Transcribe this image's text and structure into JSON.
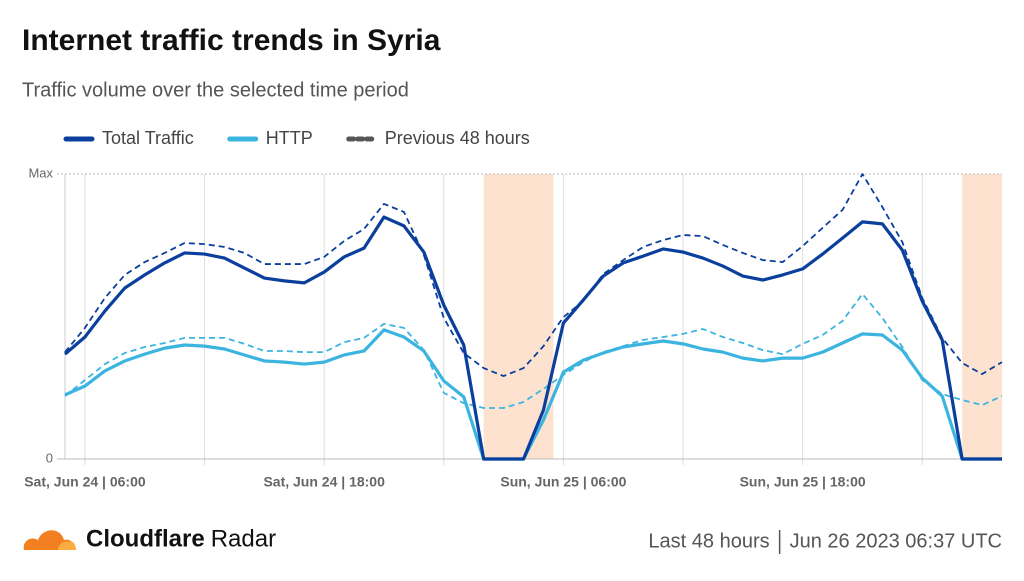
{
  "chart_data": {
    "type": "line",
    "title": "Internet traffic trends in Syria",
    "subtitle": "Traffic volume over the selected time period",
    "categories": [
      null,
      "Sat, Jun 24 | 06:00",
      null,
      null,
      null,
      null,
      null,
      null,
      null,
      null,
      null,
      null,
      null,
      "Sat, Jun 24 | 18:00",
      null,
      null,
      null,
      null,
      null,
      null,
      null,
      null,
      null,
      null,
      null,
      "Sun, Jun 25 | 06:00",
      null,
      null,
      null,
      null,
      null,
      null,
      null,
      null,
      null,
      null,
      null,
      "Sun, Jun 25 | 18:00",
      null,
      null,
      null,
      null,
      null,
      null,
      null,
      null,
      null,
      null
    ],
    "ylim": [
      0,
      100
    ],
    "yticks": [
      0,
      {
        "value": 100,
        "label": "Max"
      }
    ],
    "series": [
      {
        "name": "Total Traffic",
        "color": "#0a3f9e",
        "values": [
          36.8,
          42.8,
          51.9,
          60,
          64.6,
          68.8,
          72.3,
          71.9,
          70.5,
          67,
          63.5,
          62.5,
          61.8,
          65.6,
          70.9,
          74,
          84.9,
          81.8,
          72.6,
          54,
          40,
          0,
          0,
          0,
          17.2,
          47.7,
          55.8,
          64.2,
          68.8,
          71.2,
          73.7,
          72.6,
          70.5,
          67.7,
          64.2,
          62.8,
          64.6,
          66.7,
          71.9,
          77.5,
          83.2,
          82.5,
          73.3,
          55.4,
          41.8,
          0,
          0,
          0
        ]
      },
      {
        "name": "HTTP",
        "color": "#3cb4e0",
        "values": [
          22.5,
          25.6,
          30.9,
          34.4,
          36.8,
          38.9,
          40,
          39.6,
          38.6,
          36.5,
          34.4,
          34,
          33.3,
          34,
          36.5,
          37.9,
          45.3,
          42.8,
          37.9,
          27.4,
          21.8,
          0,
          0,
          0,
          13.7,
          30.5,
          34.7,
          37.2,
          39.3,
          40.4,
          41.4,
          40.4,
          38.6,
          37.5,
          35.4,
          34.4,
          35.4,
          35.4,
          37.5,
          40.7,
          43.9,
          43.5,
          38.2,
          28.4,
          22.1,
          0,
          0,
          0
        ]
      }
    ],
    "previous": {
      "name": "Previous 48 hours",
      "color": "#555555",
      "series": [
        {
          "color": "#0a3f9e",
          "values": [
            37.5,
            46,
            56.5,
            64.6,
            69.1,
            72.3,
            75.8,
            75.4,
            74.4,
            72.3,
            68.4,
            68.4,
            68.4,
            70.9,
            76.5,
            80.7,
            89.5,
            86.7,
            71.6,
            49.5,
            37.2,
            31.9,
            29.1,
            31.9,
            39.6,
            49.8,
            55.4,
            64.9,
            69.8,
            74.4,
            76.8,
            78.6,
            78.2,
            75.1,
            72.3,
            69.8,
            69.1,
            74.7,
            81.1,
            87.4,
            100,
            88.4,
            76.1,
            56.5,
            42.5,
            33.7,
            29.8,
            34
          ]
        },
        {
          "color": "#3cb4e0",
          "values": [
            22.1,
            27.7,
            33.3,
            37.2,
            39.3,
            40.7,
            42.5,
            42.5,
            42.5,
            40.4,
            37.9,
            37.9,
            37.5,
            37.5,
            41,
            42.5,
            47.4,
            46,
            38.2,
            23.2,
            19.6,
            17.9,
            17.9,
            20,
            24.6,
            29.5,
            34,
            37.5,
            39.6,
            41.8,
            42.8,
            43.9,
            45.6,
            42.8,
            40.7,
            38.2,
            36.8,
            40.4,
            43.5,
            48.4,
            57.9,
            49.5,
            39.3,
            27.7,
            22.8,
            20.7,
            18.9,
            22.1
          ]
        }
      ]
    },
    "highlights": [
      {
        "start": 21,
        "end": 24.5,
        "color": "#fde3cf"
      },
      {
        "start": 45,
        "end": 47,
        "color": "#fde3cf"
      }
    ],
    "grid": true
  },
  "footer": {
    "brand": "Cloudflare",
    "product": "Radar",
    "period": "Last 48 hours",
    "timestamp": "Jun 26 2023 06:37 UTC"
  }
}
